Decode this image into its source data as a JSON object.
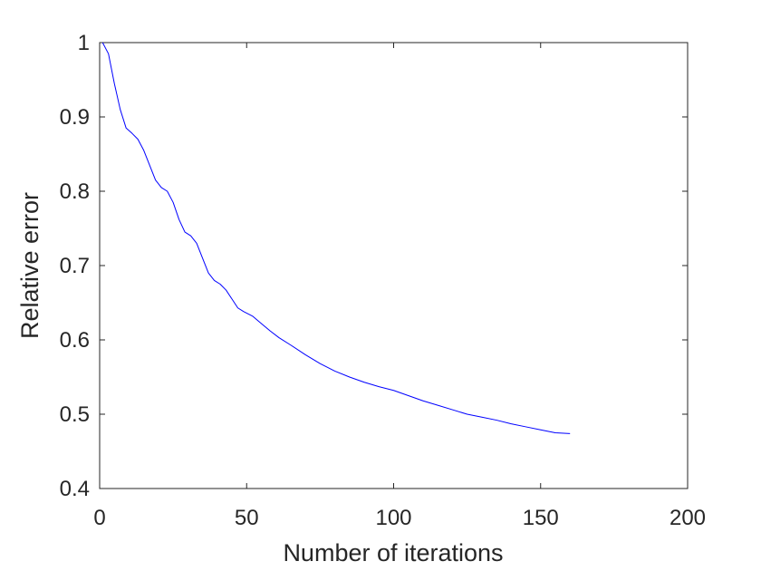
{
  "chart_data": {
    "type": "line",
    "xlabel": "Number of iterations",
    "ylabel": "Relative error",
    "xlim": [
      0,
      200
    ],
    "ylim": [
      0.4,
      1
    ],
    "xticks": [
      0,
      50,
      100,
      150,
      200
    ],
    "xtick_labels": [
      "0",
      "50",
      "100",
      "150",
      "200"
    ],
    "yticks": [
      0.4,
      0.5,
      0.6,
      0.7,
      0.8,
      0.9,
      1
    ],
    "ytick_labels": [
      "0.4",
      "0.5",
      "0.6",
      "0.7",
      "0.8",
      "0.9",
      "1"
    ],
    "grid": false,
    "line_color": "#0000ff",
    "series": [
      {
        "x": [
          1,
          3,
          5,
          7,
          9,
          11,
          13,
          15,
          17,
          19,
          21,
          23,
          25,
          27,
          29,
          31,
          33,
          35,
          37,
          39,
          41,
          43,
          45,
          47,
          49,
          52,
          55,
          58,
          61,
          65,
          70,
          75,
          80,
          85,
          90,
          95,
          100,
          105,
          110,
          115,
          120,
          125,
          130,
          135,
          140,
          145,
          150,
          155,
          160
        ],
        "y": [
          1.0,
          0.985,
          0.945,
          0.91,
          0.885,
          0.878,
          0.87,
          0.855,
          0.835,
          0.815,
          0.805,
          0.8,
          0.785,
          0.762,
          0.745,
          0.74,
          0.73,
          0.71,
          0.69,
          0.68,
          0.675,
          0.667,
          0.655,
          0.643,
          0.638,
          0.632,
          0.622,
          0.612,
          0.603,
          0.593,
          0.58,
          0.568,
          0.558,
          0.55,
          0.543,
          0.537,
          0.532,
          0.525,
          0.518,
          0.512,
          0.506,
          0.5,
          0.496,
          0.492,
          0.487,
          0.483,
          0.479,
          0.475,
          0.474
        ]
      }
    ]
  }
}
